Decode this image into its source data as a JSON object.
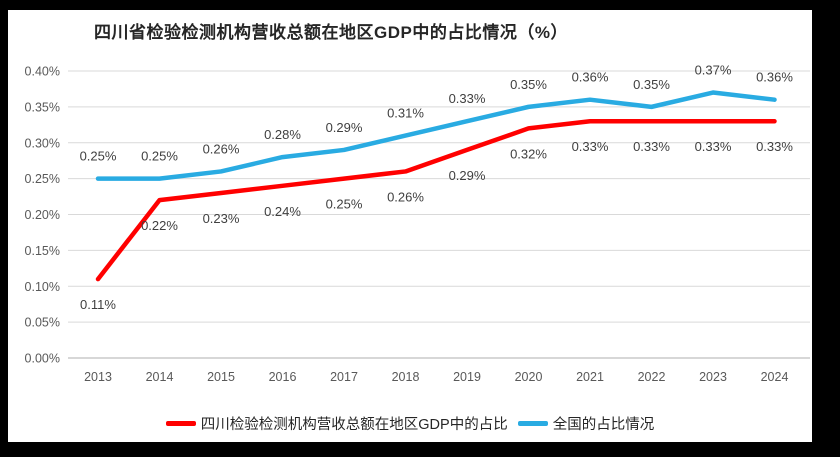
{
  "chart_data": {
    "type": "line",
    "title": "四川省检验检测机构营收总额在地区GDP中的占比情况（%）",
    "categories": [
      "2013",
      "2014",
      "2015",
      "2016",
      "2017",
      "2018",
      "2019",
      "2020",
      "2021",
      "2022",
      "2023",
      "2024"
    ],
    "series": [
      {
        "name": "四川检验检测机构营收总额在地区GDP中的占比",
        "color": "#FF0000",
        "values": [
          0.11,
          0.22,
          0.23,
          0.24,
          0.25,
          0.26,
          0.29,
          0.32,
          0.33,
          0.33,
          0.33,
          0.33
        ],
        "labels": [
          "0.11%",
          "0.22%",
          "0.23%",
          "0.24%",
          "0.25%",
          "0.26%",
          "0.29%",
          "0.32%",
          "0.33%",
          "0.33%",
          "0.33%",
          "0.33%"
        ],
        "label_position": "below"
      },
      {
        "name": "全国的占比情况",
        "color": "#29ABE2",
        "values": [
          0.25,
          0.25,
          0.26,
          0.28,
          0.29,
          0.31,
          0.33,
          0.35,
          0.36,
          0.35,
          0.37,
          0.36
        ],
        "labels": [
          "0.25%",
          "0.25%",
          "0.26%",
          "0.28%",
          "0.29%",
          "0.31%",
          "0.33%",
          "0.35%",
          "0.36%",
          "0.35%",
          "0.37%",
          "0.36%"
        ],
        "label_position": "above"
      }
    ],
    "xlabel": "",
    "ylabel": "",
    "y_axis": {
      "min": 0.0,
      "max": 0.4,
      "unit": "%",
      "ticks": [
        "0.40%",
        "0.35%",
        "0.30%",
        "0.25%",
        "0.20%",
        "0.15%",
        "0.10%",
        "0.05%",
        "0.00%"
      ]
    },
    "grid": true,
    "legend_position": "bottom"
  },
  "colors": {
    "red_series": "#FF0000",
    "blue_series": "#29ABE2",
    "gridline": "#D9D9D9",
    "baseline": "#BFBFBF",
    "axis_text": "#595959",
    "data_label": "#3F3F3F",
    "frame": "#000000",
    "panel": "#FFFFFF"
  }
}
